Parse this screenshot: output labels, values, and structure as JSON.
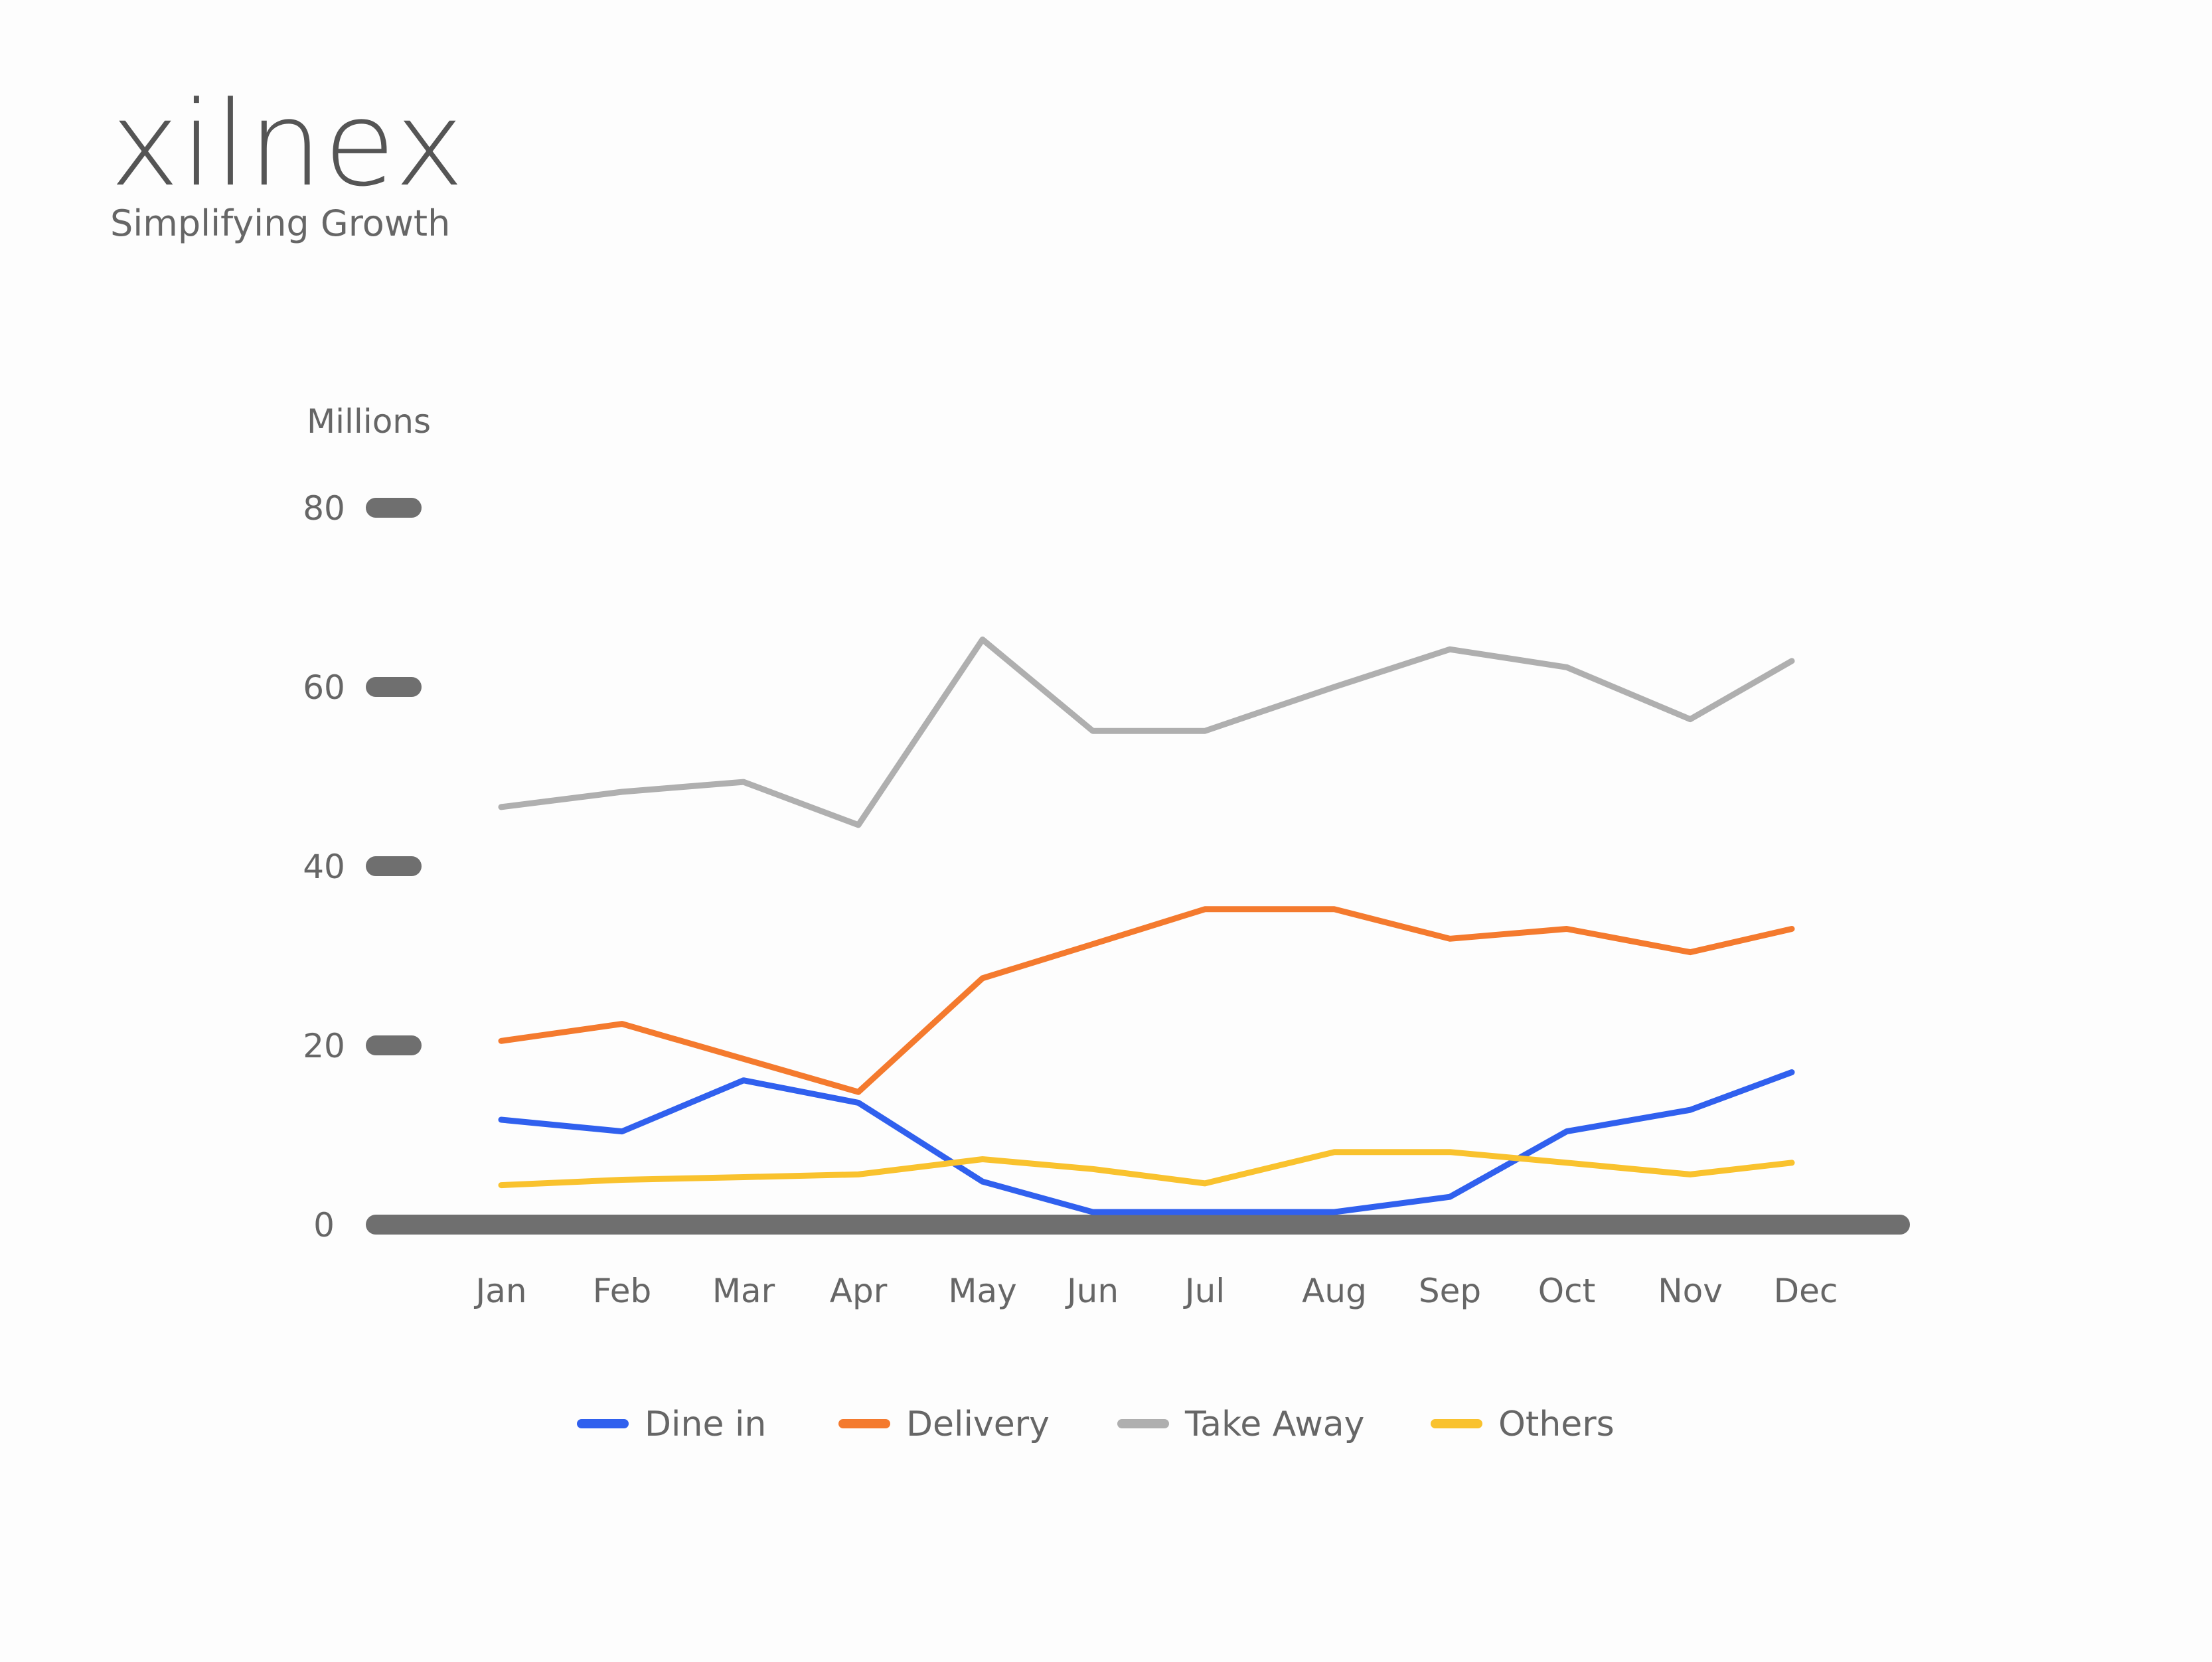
{
  "brand": {
    "name": "xilnex",
    "tagline": "Simplifying Growth"
  },
  "chart_data": {
    "type": "line",
    "unit_label": "Millions",
    "categories": [
      "Jan",
      "Feb",
      "Mar",
      "Apr",
      "May",
      "Jun",
      "Jul",
      "Aug",
      "Sep",
      "Oct",
      "Nov",
      "Dec"
    ],
    "ylim": [
      0,
      80
    ],
    "yticks": [
      0,
      20,
      40,
      60,
      80
    ],
    "grid": false,
    "legend_position": "bottom",
    "series": [
      {
        "name": "Dine in",
        "color": "#3060EE",
        "values": [
          11.7,
          10.4,
          16.1,
          13.6,
          4.8,
          1.4,
          1.4,
          1.4,
          3.1,
          10.4,
          12.8,
          17
        ]
      },
      {
        "name": "Delivery",
        "color": "#F47A2E",
        "values": [
          20.5,
          22.4,
          18.5,
          14.8,
          27.5,
          31.3,
          35.2,
          35.2,
          31.9,
          33,
          30.4,
          33
        ]
      },
      {
        "name": "Take Away",
        "color": "#AFAFAF",
        "values": [
          46.6,
          48.3,
          49.4,
          44.6,
          65.3,
          55.1,
          55.1,
          60,
          64.2,
          62.2,
          56.4,
          62.9
        ]
      },
      {
        "name": "Others",
        "color": "#F9C22E",
        "values": [
          4.4,
          5,
          5.3,
          5.6,
          7.3,
          6.2,
          4.6,
          8.1,
          8.1,
          6.9,
          5.6,
          6.9
        ]
      }
    ]
  }
}
